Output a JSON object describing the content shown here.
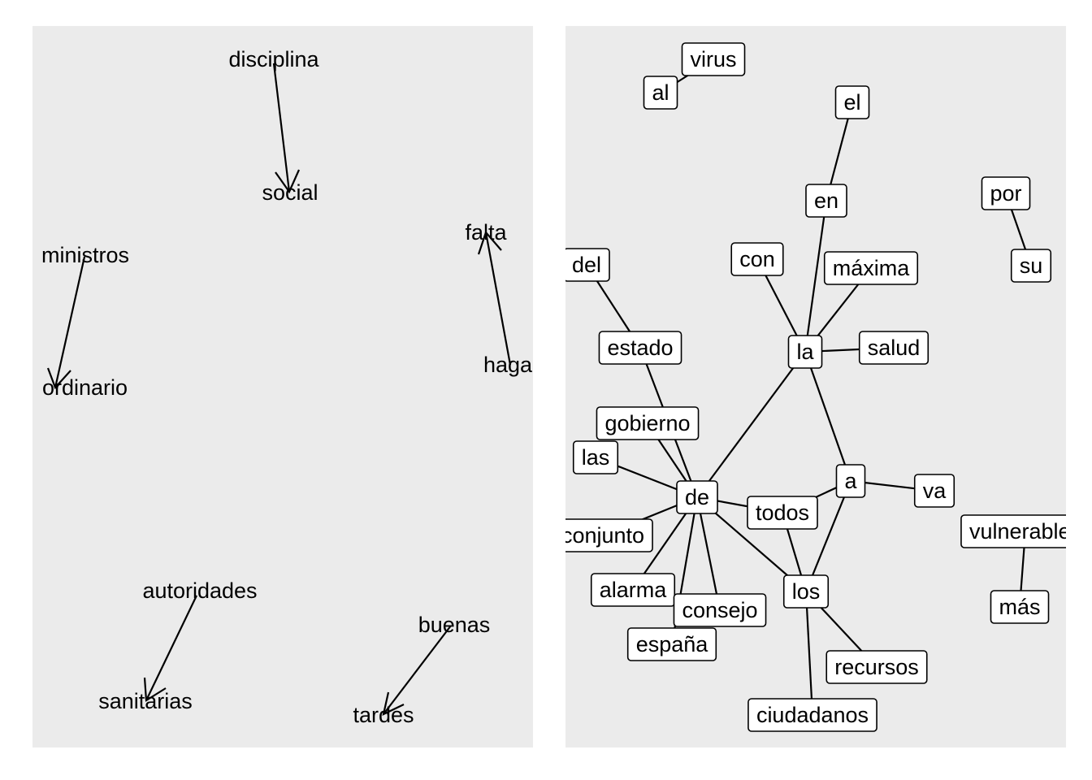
{
  "left_panel": {
    "words": {
      "disciplina": "disciplina",
      "social": "social",
      "ministros": "ministros",
      "ordinario": "ordinario",
      "falta": "falta",
      "haga": "haga",
      "autoridades": "autoridades",
      "sanitarias": "sanitarias",
      "buenas": "buenas",
      "tardes": "tardes"
    },
    "arrows": [
      {
        "from": "disciplina",
        "to": "social"
      },
      {
        "from": "ministros",
        "to": "ordinario"
      },
      {
        "from": "haga",
        "to": "falta"
      },
      {
        "from": "autoridades",
        "to": "sanitarias"
      },
      {
        "from": "buenas",
        "to": "tardes"
      }
    ]
  },
  "right_panel": {
    "nodes": {
      "virus": "virus",
      "al": "al",
      "el": "el",
      "en": "en",
      "por": "por",
      "su": "su",
      "del": "del",
      "con": "con",
      "maxima": "máxima",
      "estado": "estado",
      "la": "la",
      "salud": "salud",
      "gobierno": "gobierno",
      "las": "las",
      "a": "a",
      "va": "va",
      "de": "de",
      "todos": "todos",
      "conjunto": "conjunto",
      "vulnerables": "vulnerables",
      "alarma": "alarma",
      "los": "los",
      "consejo": "consejo",
      "mas": "más",
      "espana": "españa",
      "recursos": "recursos",
      "ciudadanos": "ciudadanos"
    },
    "edges": [
      [
        "virus",
        "al"
      ],
      [
        "el",
        "en"
      ],
      [
        "por",
        "su"
      ],
      [
        "en",
        "la"
      ],
      [
        "con",
        "la"
      ],
      [
        "maxima",
        "la"
      ],
      [
        "salud",
        "la"
      ],
      [
        "la",
        "de"
      ],
      [
        "la",
        "a"
      ],
      [
        "del",
        "estado"
      ],
      [
        "estado",
        "de"
      ],
      [
        "gobierno",
        "de"
      ],
      [
        "las",
        "de"
      ],
      [
        "de",
        "conjunto"
      ],
      [
        "de",
        "alarma"
      ],
      [
        "de",
        "consejo"
      ],
      [
        "de",
        "espana"
      ],
      [
        "de",
        "todos"
      ],
      [
        "de",
        "los"
      ],
      [
        "todos",
        "a"
      ],
      [
        "todos",
        "los"
      ],
      [
        "a",
        "va"
      ],
      [
        "a",
        "los"
      ],
      [
        "los",
        "recursos"
      ],
      [
        "los",
        "ciudadanos"
      ],
      [
        "vulnerables",
        "mas"
      ]
    ]
  }
}
